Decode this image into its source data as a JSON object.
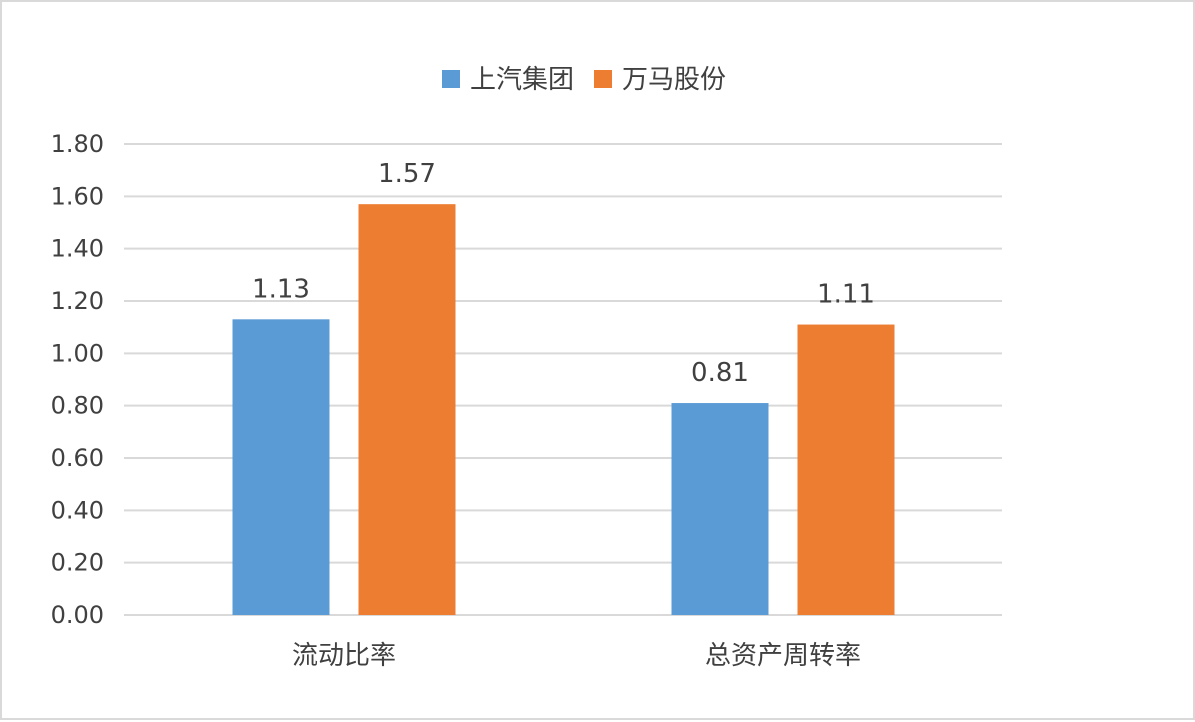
{
  "chart_data": {
    "type": "bar",
    "categories": [
      "流动比率",
      "总资产周转率"
    ],
    "series": [
      {
        "name": "上汽集团",
        "values": [
          1.13,
          0.81
        ],
        "color": "#5b9bd5"
      },
      {
        "name": "万马股份",
        "values": [
          1.57,
          1.11
        ],
        "color": "#ed7d31"
      }
    ],
    "data_labels": [
      [
        "1.13",
        "0.81"
      ],
      [
        "1.57",
        "1.11"
      ]
    ],
    "yticks": [
      "0.00",
      "0.20",
      "0.40",
      "0.60",
      "0.80",
      "1.00",
      "1.20",
      "1.40",
      "1.60",
      "1.80"
    ],
    "ylim": [
      0,
      1.8
    ],
    "grid": true,
    "legend_position": "top"
  }
}
